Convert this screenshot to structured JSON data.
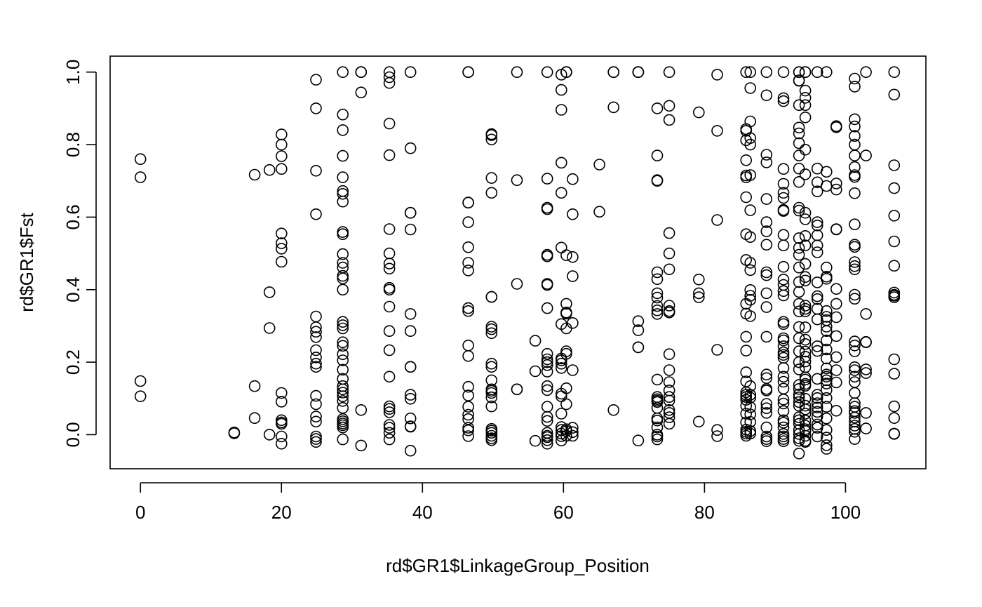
{
  "chart_data": {
    "type": "scatter",
    "title": "",
    "xlabel": "rd$GR1$LinkageGroup_Position",
    "ylabel": "rd$GR1$Fst",
    "xlim": [
      -4.3,
      111.4
    ],
    "ylim": [
      -0.094,
      1.044
    ],
    "x_ticks": [
      0,
      20,
      40,
      60,
      80,
      100
    ],
    "y_ticks": [
      0.0,
      0.2,
      0.4,
      0.6,
      0.8,
      1.0
    ],
    "x_tick_labels": [
      "0",
      "20",
      "40",
      "60",
      "80",
      "100"
    ],
    "y_tick_labels": [
      "0.0",
      "0.2",
      "0.4",
      "0.6",
      "0.8",
      "1.0"
    ],
    "grid": false,
    "legend": "none",
    "marker": "open-circle",
    "columns": [
      {
        "x": 0.0,
        "y": [
          0.76,
          0.71,
          0.148,
          0.106
        ]
      },
      {
        "x": 13.3,
        "y": [
          0.006,
          0.004
        ]
      },
      {
        "x": 16.2,
        "y": [
          0.717,
          0.134,
          0.046
        ]
      },
      {
        "x": 18.3,
        "y": [
          0.73,
          0.393,
          0.294,
          0.0
        ]
      },
      {
        "x": 20.0,
        "y": [
          0.828,
          0.8,
          0.768,
          0.733,
          0.555,
          0.528,
          0.513,
          0.477,
          0.115,
          0.091,
          0.04,
          0.034,
          0.03,
          -0.005,
          -0.025
        ]
      },
      {
        "x": 24.9,
        "y": [
          0.979,
          0.9,
          0.728,
          0.608,
          0.326,
          0.296,
          0.284,
          0.269,
          0.233,
          0.213,
          0.196,
          0.187,
          0.107,
          0.084,
          0.05,
          0.036,
          -0.005,
          -0.012,
          -0.02
        ]
      },
      {
        "x": 28.7,
        "y": [
          1.0,
          0.883,
          0.84,
          0.769,
          0.71,
          0.672,
          0.664,
          0.643,
          0.559,
          0.553,
          0.498,
          0.474,
          0.461,
          0.438,
          0.431,
          0.4,
          0.311,
          0.302,
          0.293,
          0.255,
          0.245,
          0.222,
          0.205,
          0.179,
          0.154,
          0.134,
          0.125,
          0.116,
          0.106,
          0.093,
          0.074,
          0.043,
          0.037,
          0.031,
          0.026,
          0.02,
          -0.013
        ]
      },
      {
        "x": 31.3,
        "y": [
          1.0,
          1.0,
          0.944,
          0.068,
          -0.03
        ]
      },
      {
        "x": 35.3,
        "y": [
          1.0,
          0.986,
          0.97,
          0.858,
          0.771,
          0.567,
          0.5,
          0.472,
          0.458,
          0.405,
          0.4,
          0.353,
          0.286,
          0.233,
          0.16,
          0.078,
          0.071,
          0.062,
          0.027,
          0.019,
          0.005,
          -0.013
        ]
      },
      {
        "x": 38.3,
        "y": [
          1.0,
          0.79,
          0.612,
          0.612,
          0.566,
          0.333,
          0.286,
          0.187,
          0.187,
          0.11,
          0.099,
          0.045,
          0.023,
          0.022,
          -0.044
        ]
      },
      {
        "x": 46.5,
        "y": [
          1.0,
          1.0,
          0.64,
          0.64,
          0.586,
          0.517,
          0.474,
          0.453,
          0.349,
          0.341,
          0.246,
          0.217,
          0.132,
          0.108,
          0.077,
          0.055,
          0.043,
          0.019,
          0.012,
          -0.004
        ]
      },
      {
        "x": 49.8,
        "y": [
          0.829,
          0.826,
          0.814,
          0.708,
          0.667,
          0.38,
          0.38,
          0.298,
          0.291,
          0.28,
          0.196,
          0.187,
          0.15,
          0.125,
          0.121,
          0.115,
          0.103,
          0.078,
          0.016,
          0.011,
          0.005,
          -0.003,
          -0.01,
          -0.015
        ]
      },
      {
        "x": 53.4,
        "y": [
          1.0,
          0.702,
          0.416,
          0.125,
          0.125
        ]
      },
      {
        "x": 56.0,
        "y": [
          0.259,
          0.175,
          -0.017
        ]
      },
      {
        "x": 57.7,
        "y": [
          1.0,
          0.706,
          0.626,
          0.622,
          0.496,
          0.492,
          0.416,
          0.413,
          0.349,
          0.223,
          0.208,
          0.2,
          0.192,
          0.174,
          0.134,
          0.123,
          0.077,
          0.049,
          0.038,
          0.005,
          -0.003,
          -0.007,
          -0.015,
          -0.025
        ]
      },
      {
        "x": 59.7,
        "y": [
          0.993,
          0.951,
          0.896,
          0.75,
          0.667,
          0.516,
          0.305,
          0.21,
          0.205,
          0.196,
          0.184,
          0.113,
          0.106,
          0.058,
          0.021,
          0.013,
          0.003,
          -0.004,
          -0.016
        ]
      },
      {
        "x": 60.4,
        "y": [
          1.0,
          1.0,
          1.0,
          0.495,
          0.361,
          0.337,
          0.334,
          0.293,
          0.23,
          0.223,
          0.128,
          0.084,
          0.015,
          0.01,
          -0.003
        ]
      },
      {
        "x": 61.3,
        "y": [
          0.705,
          0.608,
          0.49,
          0.437,
          0.308,
          0.178,
          0.019,
          0.007,
          -0.003
        ]
      },
      {
        "x": 65.1,
        "y": [
          0.745,
          0.615
        ]
      },
      {
        "x": 67.1,
        "y": [
          1.0,
          1.0,
          0.903,
          0.068
        ]
      },
      {
        "x": 70.6,
        "y": [
          1.0,
          1.0,
          1.0,
          0.313,
          0.288,
          0.241,
          0.241,
          -0.016
        ]
      },
      {
        "x": 73.3,
        "y": [
          0.9,
          0.77,
          0.702,
          0.7,
          0.448,
          0.429,
          0.39,
          0.378,
          0.355,
          0.343,
          0.333,
          0.152,
          0.104,
          0.098,
          0.094,
          0.09,
          0.074,
          0.045,
          0.039,
          0.02,
          0.0,
          -0.005,
          -0.013
        ]
      },
      {
        "x": 75.0,
        "y": [
          1.0,
          0.907,
          0.868,
          0.556,
          0.5,
          0.456,
          0.356,
          0.341,
          0.337,
          0.222,
          0.178,
          0.145,
          0.122,
          0.104,
          0.094,
          0.068,
          0.06,
          0.048,
          0.03
        ]
      },
      {
        "x": 79.2,
        "y": [
          0.889,
          0.428,
          0.39,
          0.379,
          0.036
        ]
      },
      {
        "x": 81.8,
        "y": [
          0.993,
          0.838,
          0.592,
          0.234,
          0.013,
          -0.004
        ]
      },
      {
        "x": 85.9,
        "y": [
          1.0,
          0.843,
          0.838,
          0.812,
          0.757,
          0.715,
          0.71,
          0.655,
          0.553,
          0.482,
          0.361,
          0.334,
          0.27,
          0.232,
          0.172,
          0.147,
          0.117,
          0.11,
          0.104,
          0.096,
          0.08,
          0.058,
          0.034,
          0.014,
          0.008,
          0.003,
          -0.003
        ]
      },
      {
        "x": 86.5,
        "y": [
          1.0,
          0.956,
          0.864,
          0.818,
          0.8,
          0.716,
          0.619,
          0.545,
          0.474,
          0.454,
          0.399,
          0.383,
          0.372,
          0.327,
          0.134,
          0.11,
          0.102,
          0.076,
          0.056,
          0.035,
          0.01,
          0.003
        ]
      },
      {
        "x": 88.8,
        "y": [
          1.0,
          0.936,
          0.772,
          0.751,
          0.65,
          0.586,
          0.561,
          0.524,
          0.448,
          0.44,
          0.39,
          0.352,
          0.27,
          0.166,
          0.156,
          0.126,
          0.122,
          0.085,
          0.073,
          0.06,
          0.02,
          -0.005,
          -0.012,
          -0.018
        ]
      },
      {
        "x": 91.2,
        "y": [
          1.0,
          0.928,
          0.92,
          0.733,
          0.692,
          0.667,
          0.653,
          0.62,
          0.617,
          0.551,
          0.522,
          0.463,
          0.428,
          0.413,
          0.396,
          0.384,
          0.311,
          0.305,
          0.266,
          0.26,
          0.244,
          0.227,
          0.22,
          0.212,
          0.184,
          0.16,
          0.146,
          0.127,
          0.097,
          0.086,
          0.065,
          0.04,
          0.033,
          0.02,
          0.002,
          -0.005,
          -0.012,
          -0.018
        ]
      },
      {
        "x": 93.4,
        "y": [
          1.0,
          1.0,
          0.977,
          0.976,
          0.909,
          0.847,
          0.831,
          0.804,
          0.77,
          0.734,
          0.697,
          0.626,
          0.618,
          0.542,
          0.515,
          0.496,
          0.461,
          0.421,
          0.394,
          0.361,
          0.34,
          0.297,
          0.266,
          0.23,
          0.2,
          0.18,
          0.137,
          0.126,
          0.111,
          0.103,
          0.09,
          0.08,
          0.048,
          0.04,
          0.03,
          0.013,
          0.002,
          -0.01,
          -0.017,
          -0.052
        ]
      },
      {
        "x": 94.3,
        "y": [
          1.0,
          1.0,
          0.949,
          0.929,
          0.909,
          0.875,
          0.786,
          0.718,
          0.612,
          0.594,
          0.548,
          0.522,
          0.471,
          0.435,
          0.425,
          0.356,
          0.347,
          0.34,
          0.296,
          0.262,
          0.25,
          0.229,
          0.215,
          0.202,
          0.186,
          0.158,
          0.152,
          0.14,
          0.135,
          0.099,
          0.08,
          0.07,
          0.058,
          0.039,
          0.025,
          0.015,
          0.01,
          -0.003,
          -0.017,
          -0.02
        ]
      },
      {
        "x": 96.0,
        "y": [
          1.0,
          0.734,
          0.696,
          0.671,
          0.586,
          0.577,
          0.55,
          0.522,
          0.503,
          0.42,
          0.382,
          0.374,
          0.347,
          0.318,
          0.244,
          0.231,
          0.154,
          0.11,
          0.101,
          0.087,
          0.075,
          0.063,
          0.05,
          0.028,
          0.019,
          -0.005
        ]
      },
      {
        "x": 97.3,
        "y": [
          1.0,
          0.725,
          0.686,
          0.461,
          0.436,
          0.43,
          0.341,
          0.325,
          0.316,
          0.298,
          0.286,
          0.26,
          0.235,
          0.21,
          0.183,
          0.166,
          0.16,
          0.15,
          0.141,
          0.123,
          0.101,
          0.077,
          0.045,
          0.013,
          -0.008,
          -0.029,
          -0.039
        ]
      },
      {
        "x": 98.7,
        "y": [
          0.851,
          0.848,
          0.693,
          0.676,
          0.567,
          0.566,
          0.402,
          0.361,
          0.324,
          0.272,
          0.214,
          0.178,
          0.144,
          0.066
        ]
      },
      {
        "x": 101.3,
        "y": [
          0.982,
          0.96,
          0.87,
          0.85,
          0.824,
          0.8,
          0.77,
          0.738,
          0.716,
          0.711,
          0.666,
          0.58,
          0.524,
          0.518,
          0.476,
          0.465,
          0.456,
          0.386,
          0.375,
          0.257,
          0.246,
          0.23,
          0.186,
          0.178,
          0.16,
          0.145,
          0.115,
          0.087,
          0.077,
          0.065,
          0.06,
          0.047,
          0.036,
          0.025,
          0.016,
          0.008,
          -0.012
        ]
      },
      {
        "x": 102.9,
        "y": [
          1.0,
          0.77,
          0.333,
          0.256,
          0.255,
          0.18,
          0.17,
          0.06,
          0.017
        ]
      },
      {
        "x": 106.9,
        "y": [
          1.0,
          0.938,
          0.743,
          0.68,
          0.604,
          0.533,
          0.466,
          0.392,
          0.386,
          0.383,
          0.379,
          0.208,
          0.168,
          0.078,
          0.046,
          0.003,
          0.002
        ]
      }
    ]
  }
}
